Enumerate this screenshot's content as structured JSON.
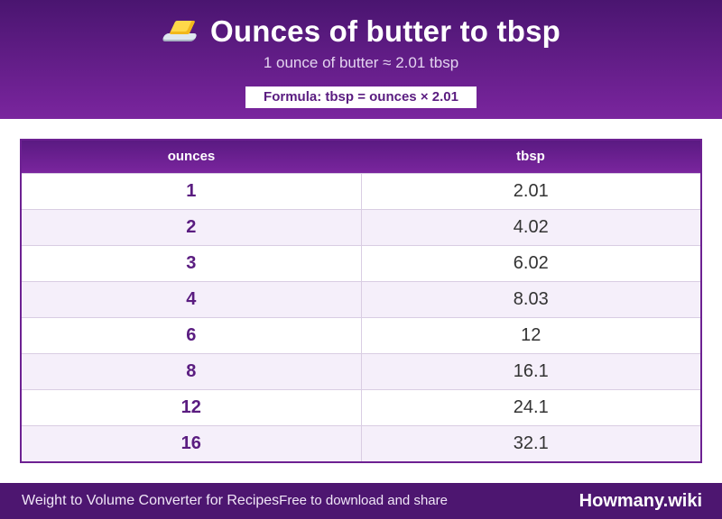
{
  "header": {
    "icon": "butter-icon",
    "title": "Ounces of butter to tbsp",
    "subtitle": "1 ounce of butter ≈ 2.01 tbsp",
    "formula": "Formula: tbsp = ounces × 2.01"
  },
  "table": {
    "headers": [
      "ounces",
      "tbsp"
    ],
    "rows": [
      [
        "1",
        "2.01"
      ],
      [
        "2",
        "4.02"
      ],
      [
        "3",
        "6.02"
      ],
      [
        "4",
        "8.03"
      ],
      [
        "6",
        "12"
      ],
      [
        "8",
        "16.1"
      ],
      [
        "12",
        "24.1"
      ],
      [
        "16",
        "32.1"
      ]
    ]
  },
  "footer": {
    "left_text": "Weight to Volume Converter for Recipes",
    "tagline": "Free to download and share",
    "brand": "Howmany.wiki"
  },
  "colors": {
    "header_start": "#4a1570",
    "header_end": "#7a259e",
    "accent": "#5a1c80",
    "row_alt": "#f5effa"
  }
}
